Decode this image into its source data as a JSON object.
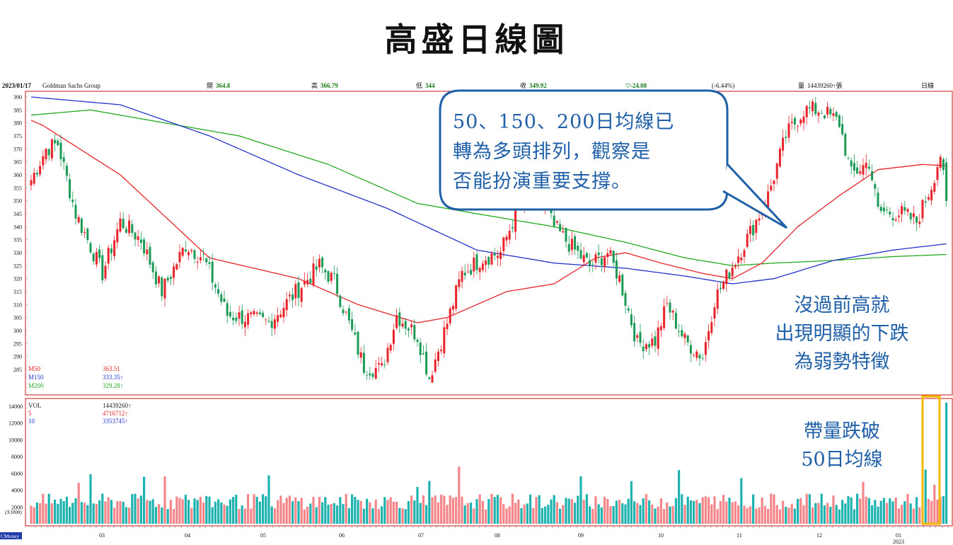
{
  "slide_title": "高盛日線圖",
  "header": {
    "date": "2023/01/17",
    "name": "Goldman Sachs Group",
    "open_label": "開",
    "open": "364.8",
    "high_label": "高",
    "high": "366.79",
    "low_label": "低",
    "low": "344",
    "close_label": "收",
    "close": "349.92",
    "change": "▽-24.08",
    "change_pct": "(-6.44%)",
    "volume_label": "量",
    "volume": "14439260↑張",
    "period": "日線"
  },
  "ma_legend": [
    {
      "name": "M50",
      "value": "363.51",
      "color": "#e8232a"
    },
    {
      "name": "M150",
      "value": "333.35↑",
      "color": "#2233cc"
    },
    {
      "name": "M200",
      "value": "329.28↑",
      "color": "#22aa22"
    }
  ],
  "vol_legend": [
    {
      "name": "VOL",
      "value": "14439260↑",
      "color": "#222222"
    },
    {
      "name": "5",
      "value": "4716712↑",
      "color": "#e8232a"
    },
    {
      "name": "10",
      "value": "3353745↑",
      "color": "#2233cc"
    }
  ],
  "vol_unit": "(X1000)",
  "watermark": "CMoney",
  "bubble": {
    "lines": [
      "50、150、200日均線已",
      "轉為多頭排列，觀察是",
      "否能扮演重要支撐。"
    ]
  },
  "annotation_right": {
    "lines": [
      "沒過前高就",
      "出現明顯的下跌",
      "為弱勢特徵"
    ]
  },
  "annotation_volume": {
    "lines": [
      "帶量跌破",
      "50日均線"
    ]
  },
  "colors": {
    "up": "#e8232a",
    "down": "#1a9a55",
    "vol_up": "#f4868a",
    "vol_down": "#1fb3b0",
    "frame": "#d23c3c",
    "bubble": "#1f5fa8",
    "highlight": "#f5b800"
  },
  "chart_data": {
    "type": "candlestick",
    "y_ticks": [
      390,
      385,
      380,
      375,
      370,
      365,
      360,
      355,
      350,
      345,
      340,
      335,
      330,
      325,
      320,
      315,
      310,
      305,
      300,
      295,
      290,
      285
    ],
    "ylim": [
      280,
      391
    ],
    "vol_ticks": [
      14000,
      12000,
      10000,
      8000,
      6000,
      4000,
      2000
    ],
    "vol_ylim": [
      0,
      14500
    ],
    "x_month_labels": [
      "03",
      "04",
      "05",
      "06",
      "07",
      "08",
      "09",
      "10",
      "11",
      "12",
      "01"
    ],
    "x_year_label": "2023",
    "anchors": [
      [
        0,
        358
      ],
      [
        5,
        370
      ],
      [
        9,
        372
      ],
      [
        15,
        345
      ],
      [
        19,
        335
      ],
      [
        24,
        322
      ],
      [
        30,
        342
      ],
      [
        37,
        335
      ],
      [
        44,
        315
      ],
      [
        52,
        333
      ],
      [
        58,
        328
      ],
      [
        66,
        306
      ],
      [
        72,
        305
      ],
      [
        80,
        303
      ],
      [
        90,
        316
      ],
      [
        97,
        325
      ],
      [
        102,
        319
      ],
      [
        112,
        286
      ],
      [
        118,
        285
      ],
      [
        123,
        306
      ],
      [
        130,
        298
      ],
      [
        134,
        282
      ],
      [
        140,
        303
      ],
      [
        145,
        322
      ],
      [
        152,
        328
      ],
      [
        158,
        330
      ],
      [
        164,
        348
      ],
      [
        170,
        354
      ],
      [
        176,
        340
      ],
      [
        182,
        332
      ],
      [
        188,
        325
      ],
      [
        194,
        330
      ],
      [
        198,
        320
      ],
      [
        204,
        295
      ],
      [
        210,
        296
      ],
      [
        214,
        310
      ],
      [
        220,
        296
      ],
      [
        226,
        290
      ],
      [
        230,
        312
      ],
      [
        236,
        325
      ],
      [
        243,
        340
      ],
      [
        248,
        352
      ],
      [
        254,
        375
      ],
      [
        260,
        385
      ],
      [
        266,
        385
      ],
      [
        272,
        380
      ],
      [
        276,
        360
      ],
      [
        282,
        365
      ],
      [
        285,
        346
      ],
      [
        293,
        345
      ],
      [
        298,
        342
      ],
      [
        303,
        356
      ],
      [
        306,
        368
      ],
      [
        308,
        349
      ]
    ],
    "m50_anchors": [
      [
        0,
        381
      ],
      [
        4,
        379
      ],
      [
        30,
        360
      ],
      [
        60,
        328
      ],
      [
        90,
        320
      ],
      [
        110,
        310
      ],
      [
        130,
        303
      ],
      [
        140,
        305
      ],
      [
        160,
        315
      ],
      [
        176,
        318
      ],
      [
        190,
        328
      ],
      [
        200,
        330
      ],
      [
        212,
        326
      ],
      [
        226,
        322
      ],
      [
        236,
        320
      ],
      [
        246,
        326
      ],
      [
        258,
        340
      ],
      [
        272,
        352
      ],
      [
        285,
        362
      ],
      [
        300,
        364
      ],
      [
        308,
        363.5
      ]
    ],
    "m150_anchors": [
      [
        0,
        390
      ],
      [
        30,
        387
      ],
      [
        60,
        375
      ],
      [
        90,
        360
      ],
      [
        120,
        347
      ],
      [
        150,
        331
      ],
      [
        176,
        326
      ],
      [
        200,
        324
      ],
      [
        220,
        321
      ],
      [
        236,
        318
      ],
      [
        250,
        320
      ],
      [
        270,
        327
      ],
      [
        290,
        331
      ],
      [
        308,
        333.4
      ]
    ],
    "m200_anchors": [
      [
        0,
        383
      ],
      [
        20,
        385
      ],
      [
        40,
        381
      ],
      [
        70,
        375
      ],
      [
        100,
        364
      ],
      [
        130,
        349
      ],
      [
        150,
        345
      ],
      [
        176,
        340
      ],
      [
        200,
        334
      ],
      [
        220,
        328
      ],
      [
        236,
        325
      ],
      [
        250,
        326
      ],
      [
        270,
        327
      ],
      [
        290,
        328.5
      ],
      [
        308,
        329.3
      ]
    ],
    "volume_notes": "daily volume in thousands; last bar 14439",
    "last_volume": 14439
  }
}
